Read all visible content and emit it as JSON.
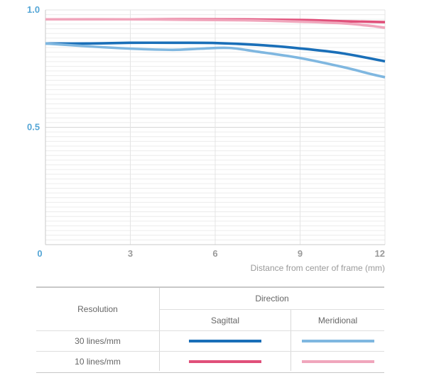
{
  "chart_data": {
    "type": "line",
    "title": "",
    "xlabel": "Distance from center of frame (mm)",
    "ylabel": "",
    "xlim": [
      0,
      12
    ],
    "ylim": [
      0,
      1.0
    ],
    "x_ticks": [
      "0",
      "3",
      "6",
      "9",
      "12"
    ],
    "y_ticks": [
      "0.5",
      "1.0"
    ],
    "grid": true,
    "series": [
      {
        "resolution": "10 lines/mm",
        "direction": "Sagittal",
        "color": "#e0507a",
        "x": [
          0,
          3,
          6,
          9,
          10.5,
          12
        ],
        "y": [
          0.96,
          0.96,
          0.96,
          0.957,
          0.952,
          0.948
        ]
      },
      {
        "resolution": "10 lines/mm",
        "direction": "Meridional",
        "color": "#f0a6bc",
        "x": [
          0,
          3,
          6,
          7.5,
          9,
          10.5,
          11.5,
          12
        ],
        "y": [
          0.96,
          0.96,
          0.957,
          0.955,
          0.95,
          0.943,
          0.932,
          0.924
        ]
      },
      {
        "resolution": "30 lines/mm",
        "direction": "Sagittal",
        "color": "#1a6fb8",
        "x": [
          0,
          1.5,
          3,
          4.5,
          6,
          7.5,
          9,
          10.5,
          12
        ],
        "y": [
          0.857,
          0.857,
          0.86,
          0.86,
          0.859,
          0.851,
          0.836,
          0.815,
          0.781
        ]
      },
      {
        "resolution": "30 lines/mm",
        "direction": "Meridional",
        "color": "#7fb7e0",
        "x": [
          0,
          1.5,
          3,
          4.5,
          5.5,
          6.5,
          7.5,
          9,
          10.5,
          11.5,
          12
        ],
        "y": [
          0.857,
          0.845,
          0.835,
          0.83,
          0.835,
          0.838,
          0.822,
          0.795,
          0.757,
          0.727,
          0.713
        ]
      }
    ]
  },
  "legend": {
    "resolution_header": "Resolution",
    "direction_header": "Direction",
    "sagittal": "Sagittal",
    "meridional": "Meridional",
    "rows": [
      {
        "label": "30 lines/mm",
        "sagittal_color": "#1a6fb8",
        "meridional_color": "#7fb7e0"
      },
      {
        "label": "10 lines/mm",
        "sagittal_color": "#e0507a",
        "meridional_color": "#f0a6bc"
      }
    ]
  }
}
